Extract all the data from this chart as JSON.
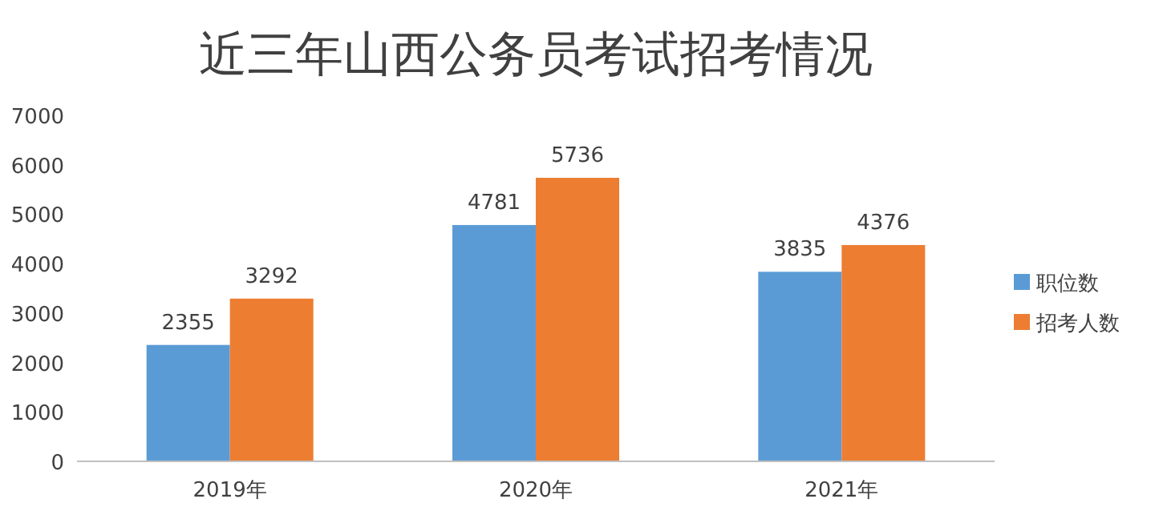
{
  "chart_data": {
    "type": "bar",
    "title": "近三年山西公务员考试招考情况",
    "categories": [
      "2019年",
      "2020年",
      "2021年"
    ],
    "series": [
      {
        "name": "职位数",
        "color": "#5b9bd5",
        "values": [
          2355,
          4781,
          3835
        ]
      },
      {
        "name": "招考人数",
        "color": "#ed7d31",
        "values": [
          3292,
          5736,
          4376
        ]
      }
    ],
    "ylim": [
      0,
      7000
    ],
    "yticks": [
      0,
      1000,
      2000,
      3000,
      4000,
      5000,
      6000,
      7000
    ],
    "grid": false,
    "legend": "right",
    "data_labels": true
  }
}
